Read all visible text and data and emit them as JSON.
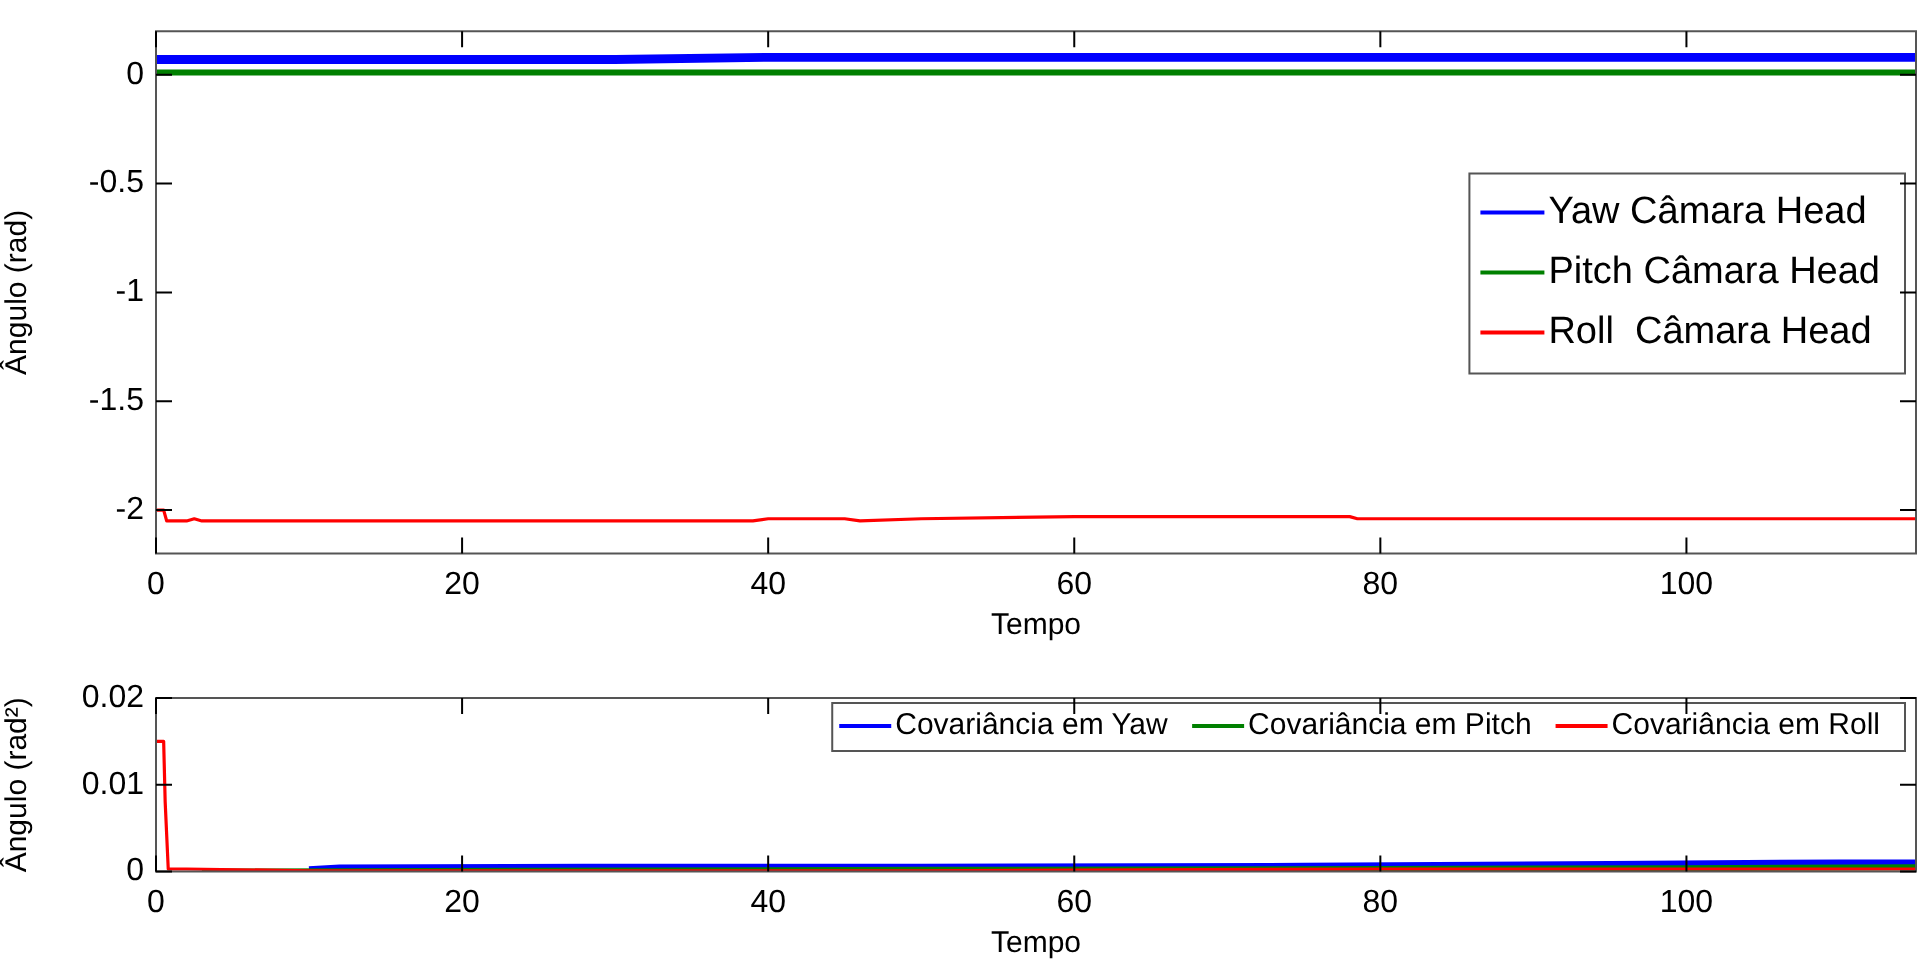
{
  "chart_data": [
    {
      "type": "line",
      "xlabel": "Tempo",
      "ylabel": "Ângulo (rad)",
      "xlim": [
        0,
        115
      ],
      "ylim": [
        -2.2,
        0.2
      ],
      "xticks": [
        0,
        20,
        40,
        60,
        80,
        100
      ],
      "yticks": [
        -2,
        -1.5,
        -1,
        -0.5,
        0
      ],
      "grid": false,
      "legend": "right",
      "marker": "none",
      "line_style": "solid",
      "series": [
        {
          "name": "Yaw Câmara Head",
          "color": "#0000ff",
          "x": [
            0,
            10,
            20,
            30,
            40,
            47,
            50,
            55,
            60,
            65,
            70,
            80,
            90,
            100,
            110,
            115
          ],
          "values": [
            0.07,
            0.07,
            0.07,
            0.07,
            0.08,
            0.08,
            0.08,
            0.08,
            0.08,
            0.08,
            0.08,
            0.08,
            0.08,
            0.08,
            0.08,
            0.08
          ]
        },
        {
          "name": "Pitch Câmara Head",
          "color": "#008000",
          "x": [
            0,
            20,
            40,
            60,
            80,
            100,
            115
          ],
          "values": [
            0.01,
            0.01,
            0.01,
            0.01,
            0.01,
            0.01,
            0.01
          ]
        },
        {
          "name": "Roll  Câmara Head",
          "color": "#ff0000",
          "x": [
            0,
            0.5,
            0.7,
            2,
            2.5,
            3,
            39,
            40,
            45,
            46,
            50,
            60,
            70,
            78,
            78.5,
            115
          ],
          "values": [
            -2,
            -2,
            -2.05,
            -2.05,
            -2.04,
            -2.05,
            -2.05,
            -2.04,
            -2.04,
            -2.05,
            -2.04,
            -2.03,
            -2.03,
            -2.03,
            -2.04,
            -2.04
          ]
        }
      ]
    },
    {
      "type": "line",
      "xlabel": "Tempo",
      "ylabel": "Ângulo (rad²)",
      "xlim": [
        0,
        115
      ],
      "ylim": [
        0,
        0.02
      ],
      "xticks": [
        0,
        20,
        40,
        60,
        80,
        100
      ],
      "yticks": [
        0,
        0.01,
        0.02
      ],
      "grid": false,
      "legend": "top right",
      "marker": "none",
      "line_style": "solid",
      "series": [
        {
          "name": "Covariância em Yaw",
          "color": "#0000ff",
          "x": [
            10,
            12,
            28,
            50,
            75,
            95,
            110,
            115
          ],
          "values": [
            0.0001,
            0.0003,
            0.0004,
            0.0004,
            0.0005,
            0.0007,
            0.0009,
            0.0009
          ]
        },
        {
          "name": "Covariância em Pitch",
          "color": "#008000",
          "x": [
            3,
            50,
            80,
            100,
            115
          ],
          "values": [
            0,
            0.0002,
            0.0003,
            0.0004,
            0.0005
          ]
        },
        {
          "name": "Covariância em Roll",
          "color": "#ff0000",
          "x": [
            0,
            0.5,
            0.6,
            0.8,
            2,
            10,
            50,
            80,
            115
          ],
          "values": [
            0.015,
            0.015,
            0.008,
            0.0003,
            0.0003,
            0.0001,
            0.0001,
            0.0003,
            0.0003
          ]
        }
      ]
    }
  ]
}
